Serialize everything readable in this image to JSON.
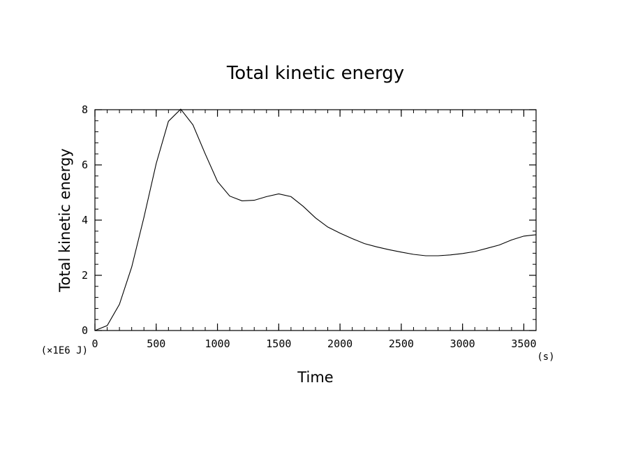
{
  "chart_data": {
    "type": "line",
    "title": "Total kinetic energy",
    "xlabel": "Time",
    "ylabel": "Total kinetic energy",
    "x_unit": "(s)",
    "y_unit": "(×1E6 J)",
    "xlim": [
      0,
      3600
    ],
    "ylim": [
      0,
      8
    ],
    "x_ticks": [
      0,
      500,
      1000,
      1500,
      2000,
      2500,
      3000,
      3500
    ],
    "y_ticks": [
      0,
      2,
      4,
      6,
      8
    ],
    "grid": false,
    "line_color": "#000000",
    "series": [
      {
        "x": [
          0,
          100,
          200,
          300,
          400,
          500,
          600,
          700,
          800,
          900,
          1000,
          1100,
          1200,
          1300,
          1400,
          1500,
          1600,
          1700,
          1800,
          1900,
          2000,
          2100,
          2200,
          2300,
          2400,
          2500,
          2600,
          2700,
          2800,
          2900,
          3000,
          3100,
          3200,
          3300,
          3400,
          3500,
          3600
        ],
        "y": [
          0,
          0.18,
          0.95,
          2.3,
          4.1,
          6.05,
          7.58,
          8.02,
          7.45,
          6.4,
          5.4,
          4.87,
          4.7,
          4.72,
          4.85,
          4.95,
          4.85,
          4.5,
          4.08,
          3.75,
          3.53,
          3.33,
          3.15,
          3.03,
          2.93,
          2.84,
          2.76,
          2.71,
          2.71,
          2.74,
          2.79,
          2.86,
          2.98,
          3.1,
          3.28,
          3.42,
          3.47
        ]
      }
    ]
  }
}
